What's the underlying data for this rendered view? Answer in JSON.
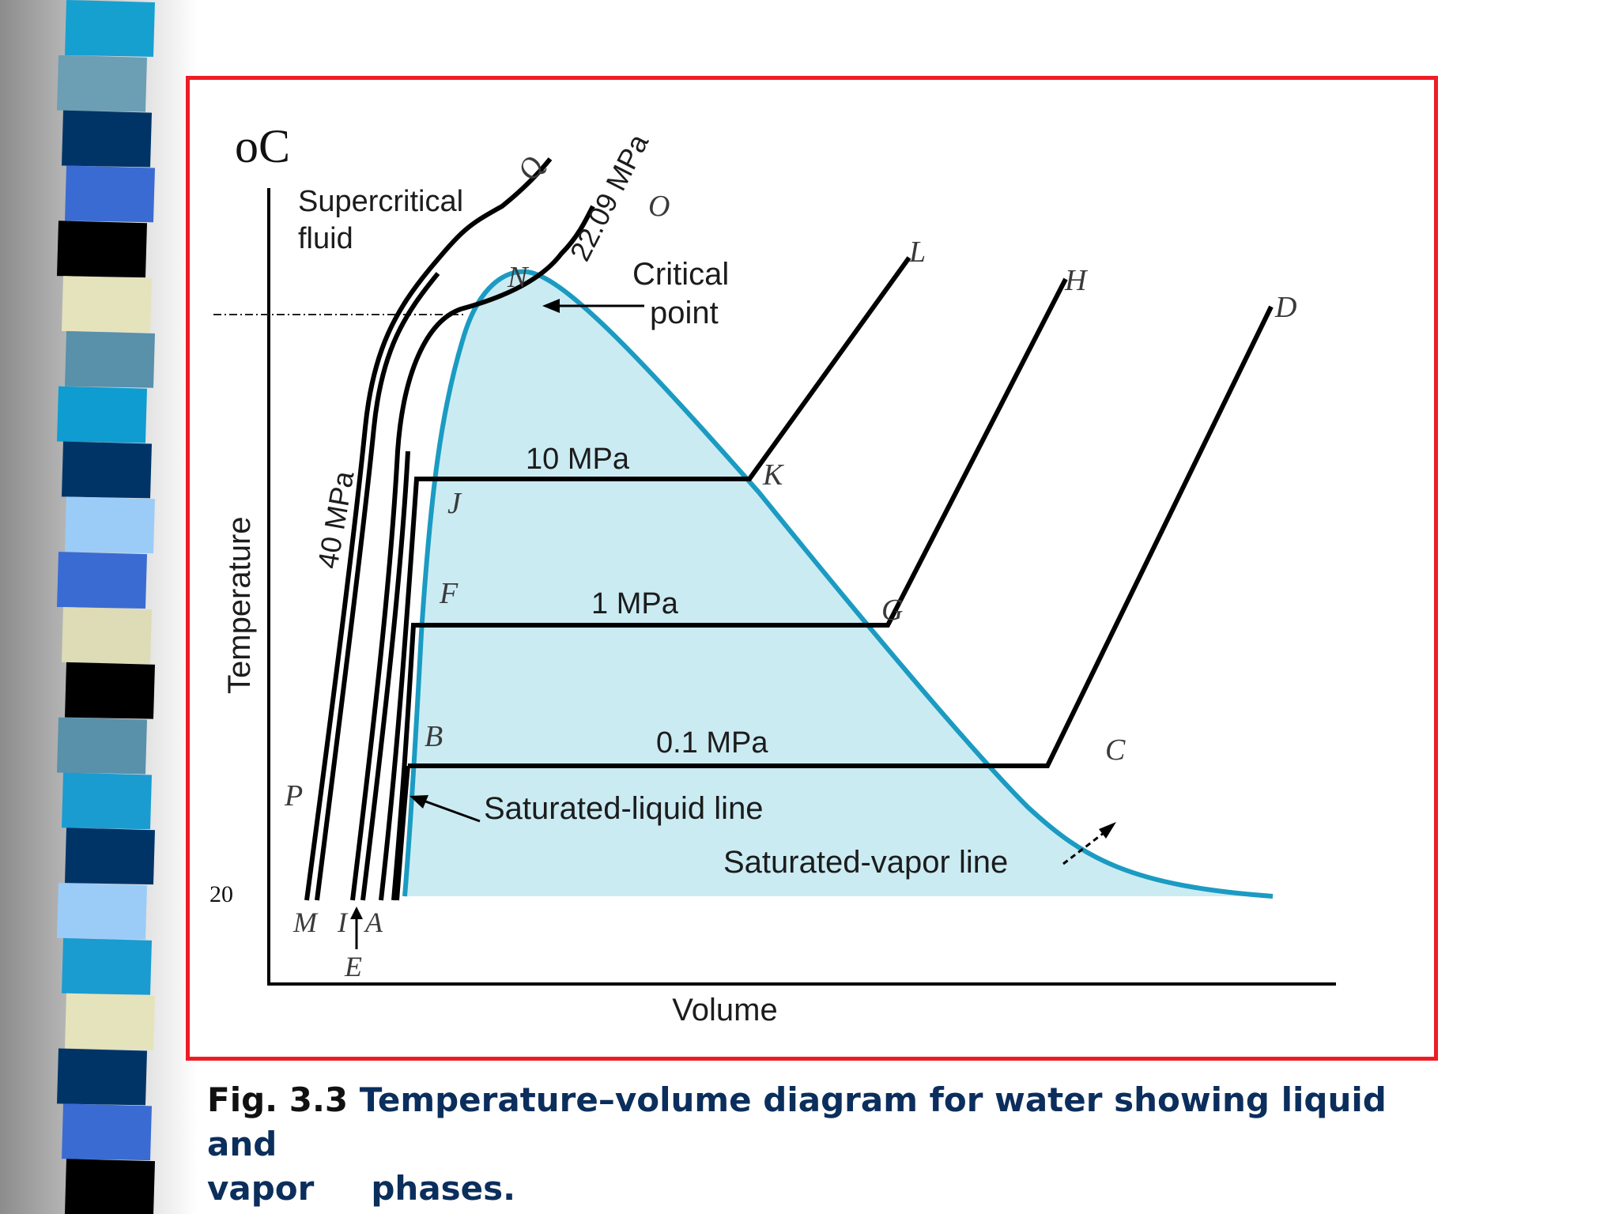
{
  "stripes": [
    "#16a0d0",
    "#6c9eb4",
    "#003467",
    "#3a6bd2",
    "#000000",
    "#e5e3bb",
    "#5990aa",
    "#0f9cd0",
    "#003467",
    "#9bccf7",
    "#3a6bd2",
    "#dedcb6",
    "#000000",
    "#5990aa",
    "#1a9cd0",
    "#003467",
    "#9bccf7",
    "#1a9cd0",
    "#e5e3bb",
    "#003467",
    "#3a6bd2",
    "#000000"
  ],
  "frame_color": "#ee1c25",
  "dome_fill": "#cbebf3",
  "dome_line_color": "#1b9bc2",
  "diagram": {
    "y_unit": "oC",
    "y_label": "Temperature",
    "x_label": "Volume",
    "y_tick_low": "20",
    "region_label_line1": "Supercritical",
    "region_label_line2": "fluid",
    "critical_point_line1": "Critical",
    "critical_point_line2": "point",
    "saturated_liquid_label": "Saturated-liquid line",
    "saturated_vapor_label": "Saturated-vapor line",
    "isobars": {
      "p_40": "40 MPa",
      "p_critical": "22.09 MPa",
      "p_10": "10 MPa",
      "p_1": "1 MPa",
      "p_01": "0.1 MPa"
    },
    "points": {
      "Q": "Q",
      "O": "O",
      "N": "N",
      "L": "L",
      "H": "H",
      "D": "D",
      "K": "K",
      "J": "J",
      "F": "F",
      "G": "G",
      "B": "B",
      "C": "C",
      "P": "P",
      "M": "M",
      "I": "I",
      "A": "A",
      "E": "E"
    }
  },
  "caption": {
    "prefix": "Fig. 3.3",
    "line1": "Temperature–volume diagram for water showing liquid and",
    "line2_a": "vapor",
    "line2_b": "phases."
  }
}
